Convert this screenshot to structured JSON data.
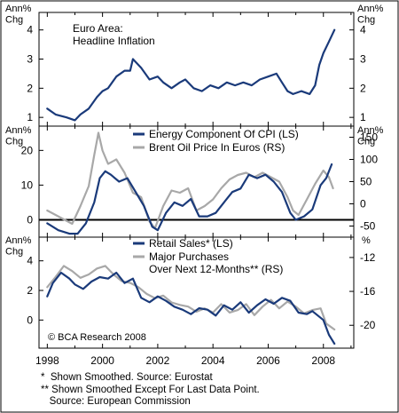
{
  "figure": {
    "axis_unit_left": "Ann%\nChg",
    "axis_unit_right": "Ann%\nChg",
    "axis_unit_right_bottom": "%",
    "credit": "© BCA Research 2008",
    "footnotes": [
      "*  Shown Smoothed. Source: Eurostat",
      "** Shown Smoothed Except For Last Data Point.",
      "   Source: European Commission"
    ],
    "colors": {
      "primary": "#1a3a7a",
      "secondary": "#a8a8a8",
      "frame": "#000000",
      "page": "#ffffff"
    }
  },
  "chart_data": [
    {
      "type": "line",
      "title": "Euro Area:\nHeadline Inflation",
      "x_ticks": [
        "1998",
        "2000",
        "2002",
        "2004",
        "2006",
        "2008"
      ],
      "xlim": [
        1997.7,
        2009.1
      ],
      "ylim": [
        0.7,
        4.6
      ],
      "y_ticks_left": [
        "1",
        "2",
        "3",
        "4"
      ],
      "y_ticks_right": [
        "1",
        "2",
        "3",
        "4"
      ],
      "series": [
        {
          "name": "",
          "color": "#1a3a7a",
          "x": [
            1998.0,
            1998.3,
            1998.7,
            1999.0,
            1999.2,
            1999.5,
            1999.8,
            2000.0,
            2000.2,
            2000.5,
            2000.8,
            2001.0,
            2001.1,
            2001.4,
            2001.7,
            2002.0,
            2002.2,
            2002.5,
            2002.8,
            2003.0,
            2003.3,
            2003.6,
            2003.9,
            2004.2,
            2004.5,
            2004.8,
            2005.1,
            2005.4,
            2005.7,
            2006.0,
            2006.3,
            2006.5,
            2006.7,
            2006.9,
            2007.2,
            2007.5,
            2007.7,
            2007.85,
            2008.0,
            2008.2,
            2008.4
          ],
          "y": [
            1.3,
            1.1,
            1.0,
            0.9,
            1.1,
            1.3,
            1.7,
            1.9,
            2.0,
            2.4,
            2.6,
            2.6,
            3.0,
            2.7,
            2.3,
            2.4,
            2.2,
            2.0,
            2.2,
            2.3,
            2.0,
            1.9,
            2.1,
            2.0,
            2.2,
            2.1,
            2.2,
            2.1,
            2.3,
            2.4,
            2.5,
            2.2,
            1.9,
            1.8,
            1.9,
            1.8,
            2.1,
            2.8,
            3.2,
            3.6,
            4.0
          ]
        }
      ]
    },
    {
      "type": "line",
      "x_ticks": [
        "1998",
        "2000",
        "2002",
        "2004",
        "2006",
        "2008"
      ],
      "xlim": [
        1997.7,
        2009.1
      ],
      "ylim_left": [
        -5,
        27
      ],
      "ylim_right": [
        -75,
        175
      ],
      "y_ticks_left": [
        "0",
        "10",
        "20"
      ],
      "y_ticks_right": [
        "-50",
        "0",
        "50",
        "100",
        "150"
      ],
      "zero_line": true,
      "legend_placement": "top-right",
      "series": [
        {
          "name": "Energy Component Of CPI (LS)",
          "axis": "left",
          "color": "#1a3a7a",
          "x": [
            1998.0,
            1998.4,
            1998.8,
            1999.1,
            1999.4,
            1999.7,
            1999.9,
            2000.1,
            2000.3,
            2000.6,
            2000.9,
            2001.2,
            2001.5,
            2001.8,
            2002.0,
            2002.3,
            2002.6,
            2002.9,
            2003.2,
            2003.5,
            2003.8,
            2004.1,
            2004.4,
            2004.7,
            2005.0,
            2005.3,
            2005.6,
            2005.9,
            2006.2,
            2006.5,
            2006.8,
            2007.0,
            2007.3,
            2007.6,
            2007.9,
            2008.1,
            2008.3
          ],
          "y": [
            -1,
            -3,
            -4,
            -4,
            -1,
            5,
            12,
            14,
            13,
            11,
            12,
            8,
            4,
            -2,
            -3,
            2,
            5,
            4,
            6,
            1,
            1,
            2,
            5,
            8,
            9,
            13,
            12,
            13,
            11,
            8,
            2,
            0,
            1,
            3,
            10,
            12,
            16
          ]
        },
        {
          "name": "Brent Oil Price In Euros (RS)",
          "axis": "right",
          "color": "#a8a8a8",
          "x": [
            1998.0,
            1998.3,
            1998.6,
            1998.9,
            1999.2,
            1999.5,
            1999.7,
            1999.85,
            2000.0,
            2000.2,
            2000.5,
            2000.8,
            2001.1,
            2001.4,
            2001.7,
            2001.9,
            2002.2,
            2002.5,
            2002.8,
            2003.1,
            2003.4,
            2003.7,
            2004.0,
            2004.3,
            2004.6,
            2004.9,
            2005.2,
            2005.5,
            2005.8,
            2006.1,
            2006.4,
            2006.7,
            2006.9,
            2007.1,
            2007.4,
            2007.7,
            2008.0,
            2008.2,
            2008.35
          ],
          "y": [
            -15,
            -25,
            -35,
            -45,
            -5,
            40,
            110,
            160,
            120,
            90,
            100,
            70,
            25,
            15,
            -40,
            -55,
            -5,
            30,
            25,
            35,
            -15,
            -5,
            10,
            35,
            55,
            65,
            70,
            60,
            70,
            60,
            50,
            15,
            -15,
            -25,
            10,
            45,
            75,
            60,
            35
          ]
        }
      ]
    },
    {
      "type": "line",
      "x_ticks": [
        "1998",
        "2000",
        "2002",
        "2004",
        "2006",
        "2008"
      ],
      "xlim": [
        1997.7,
        2009.1
      ],
      "ylim_left": [
        -1.9,
        5.6
      ],
      "ylim_right": [
        -22.7,
        -9.6
      ],
      "y_ticks_left": [
        "0",
        "2",
        "4"
      ],
      "y_ticks_right": [
        "-20",
        "-16",
        "-12"
      ],
      "legend_placement": "top-right",
      "series": [
        {
          "name": "Retail Sales* (LS)",
          "axis": "left",
          "color": "#1a3a7a",
          "x": [
            1998.0,
            1998.2,
            1998.5,
            1998.8,
            1999.0,
            1999.3,
            1999.6,
            1999.9,
            2000.2,
            2000.5,
            2000.8,
            2001.1,
            2001.4,
            2001.7,
            2002.0,
            2002.3,
            2002.6,
            2002.9,
            2003.2,
            2003.5,
            2003.8,
            2004.1,
            2004.4,
            2004.7,
            2005.0,
            2005.3,
            2005.6,
            2005.9,
            2006.2,
            2006.5,
            2006.8,
            2007.1,
            2007.4,
            2007.6,
            2007.8,
            2008.0,
            2008.2,
            2008.4
          ],
          "y": [
            1.6,
            2.5,
            3.2,
            2.8,
            2.4,
            2.1,
            2.6,
            2.9,
            2.8,
            3.2,
            2.5,
            2.8,
            1.5,
            1.2,
            1.6,
            1.3,
            0.9,
            0.7,
            0.4,
            0.8,
            0.7,
            0.3,
            1.0,
            0.7,
            1.2,
            0.5,
            1.0,
            1.4,
            1.1,
            1.5,
            1.3,
            0.5,
            0.4,
            0.6,
            0.3,
            0.0,
            -1.0,
            -1.6
          ]
        },
        {
          "name": "Major Purchases\nOver Next 12-Months** (RS)",
          "axis": "right",
          "color": "#a8a8a8",
          "x": [
            1998.0,
            1998.3,
            1998.6,
            1998.9,
            1999.2,
            1999.5,
            1999.8,
            2000.1,
            2000.4,
            2000.7,
            2001.0,
            2001.3,
            2001.6,
            2001.9,
            2002.2,
            2002.5,
            2002.8,
            2003.1,
            2003.4,
            2003.7,
            2004.0,
            2004.3,
            2004.6,
            2004.9,
            2005.2,
            2005.5,
            2005.8,
            2006.1,
            2006.4,
            2006.7,
            2007.0,
            2007.3,
            2007.6,
            2007.9,
            2008.1,
            2008.4
          ],
          "y": [
            -15.5,
            -14.3,
            -13.0,
            -13.6,
            -14.4,
            -14.0,
            -13.3,
            -13.0,
            -14.0,
            -14.8,
            -15.0,
            -15.5,
            -16.3,
            -16.8,
            -16.5,
            -17.3,
            -17.6,
            -17.8,
            -18.4,
            -18.0,
            -18.5,
            -17.5,
            -18.5,
            -18.2,
            -17.5,
            -18.8,
            -17.8,
            -17.0,
            -18.0,
            -17.2,
            -17.8,
            -18.6,
            -18.2,
            -18.0,
            -19.8,
            -20.5
          ]
        }
      ]
    }
  ]
}
